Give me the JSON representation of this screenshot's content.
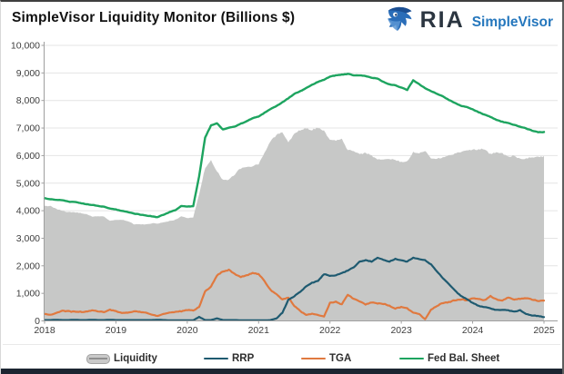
{
  "header": {
    "title": "SimpleVisor Liquidity Monitor (Billions $)",
    "brand": {
      "name": "RIA",
      "product": "SimpleVisor"
    }
  },
  "colors": {
    "liquidity_fill": "#c7c8c7",
    "rrp_line": "#1e5a70",
    "tga_line": "#e0793f",
    "fed_line": "#1da45f",
    "grid": "#e4e4e4",
    "axis": "#9f9f9f",
    "tick_text": "#3e3e3e",
    "brand_dark": "#2b3540",
    "brand_blue": "#2577bd",
    "bottom_bar": "#1c2531"
  },
  "chart_data": {
    "type": "area",
    "title": "SimpleVisor Liquidity Monitor (Billions $)",
    "xlabel": "",
    "ylabel": "",
    "ylim": [
      0,
      10000
    ],
    "y_tick_step": 1000,
    "y_tick_labels": [
      "0",
      "1,000",
      "2,000",
      "3,000",
      "4,000",
      "5,000",
      "6,000",
      "7,000",
      "8,000",
      "9,000",
      "10,000"
    ],
    "x_tick_labels": [
      "2018",
      "2019",
      "2020",
      "2021",
      "2022",
      "2023",
      "2024",
      "2025"
    ],
    "x_start": "2018-01",
    "x_end": "2025-01",
    "grid": "horizontal",
    "legend_position": "bottom",
    "series": [
      {
        "name": "Liquidity",
        "type": "area",
        "color": "#c7c8c7",
        "values": [
          4169,
          4164,
          4065,
          3992,
          3947,
          3946,
          3917,
          3877,
          3788,
          3795,
          3783,
          3636,
          3667,
          3670,
          3626,
          3512,
          3503,
          3496,
          3540,
          3540,
          3576,
          3626,
          3671,
          3796,
          3731,
          3759,
          4604,
          5556,
          5817,
          5429,
          5119,
          5131,
          5326,
          5537,
          5573,
          5614,
          5694,
          6097,
          6541,
          6738,
          6856,
          6461,
          6800,
          6930,
          6983,
          6930,
          7015,
          6897,
          6587,
          6561,
          6587,
          6195,
          6164,
          6065,
          6090,
          6006,
          5861,
          5835,
          5884,
          5851,
          5771,
          5783,
          6134,
          6093,
          6186,
          5891,
          5893,
          5946,
          5993,
          6066,
          6135,
          6214,
          6207,
          6226,
          6235,
          6052,
          6116,
          6078,
          5948,
          6003,
          5867,
          5907,
          5925,
          5952,
          5970
        ]
      },
      {
        "name": "RRP",
        "type": "line",
        "color": "#1e5a70",
        "values": [
          30,
          30,
          40,
          30,
          30,
          40,
          30,
          30,
          40,
          30,
          30,
          40,
          30,
          30,
          30,
          30,
          30,
          30,
          30,
          40,
          30,
          20,
          20,
          20,
          20,
          20,
          150,
          30,
          30,
          90,
          30,
          30,
          30,
          20,
          20,
          20,
          20,
          20,
          30,
          90,
          300,
          766,
          900,
          1050,
          1250,
          1380,
          1450,
          1700,
          1630,
          1650,
          1750,
          1820,
          1950,
          2150,
          2200,
          2150,
          2300,
          2220,
          2150,
          2250,
          2200,
          2150,
          2300,
          2250,
          2200,
          2050,
          1800,
          1550,
          1350,
          1100,
          900,
          800,
          650,
          550,
          500,
          450,
          400,
          400,
          380,
          330,
          380,
          250,
          200,
          180,
          130
        ]
      },
      {
        "name": "TGA",
        "type": "line",
        "color": "#e0793f",
        "values": [
          250,
          220,
          290,
          360,
          350,
          330,
          330,
          330,
          380,
          350,
          330,
          400,
          350,
          290,
          300,
          350,
          330,
          300,
          230,
          180,
          250,
          300,
          330,
          350,
          400,
          380,
          500,
          1070,
          1250,
          1650,
          1800,
          1850,
          1700,
          1600,
          1650,
          1729,
          1700,
          1440,
          1122,
          966,
          779,
          851,
          540,
          356,
          215,
          260,
          210,
          160,
          650,
          700,
          600,
          950,
          800,
          700,
          600,
          670,
          635,
          620,
          550,
          450,
          500,
          450,
          300,
          250,
          60,
          400,
          550,
          650,
          680,
          750,
          780,
          750,
          820,
          800,
          750,
          900,
          780,
          750,
          850,
          780,
          800,
          830,
          780,
          720,
          750
        ]
      },
      {
        "name": "Fed Bal. Sheet",
        "type": "line",
        "color": "#1da45f",
        "values": [
          4449,
          4414,
          4395,
          4382,
          4327,
          4316,
          4277,
          4237,
          4208,
          4175,
          4143,
          4076,
          4047,
          3990,
          3956,
          3892,
          3863,
          3826,
          3800,
          3760,
          3856,
          3946,
          4021,
          4166,
          4151,
          4159,
          5254,
          6656,
          7097,
          7169,
          6949,
          7011,
          7056,
          7157,
          7243,
          7363,
          7414,
          7557,
          7693,
          7794,
          7935,
          8078,
          8240,
          8336,
          8448,
          8570,
          8675,
          8757,
          8867,
          8911,
          8937,
          8965,
          8914,
          8915,
          8890,
          8826,
          8796,
          8675,
          8584,
          8551,
          8471,
          8383,
          8734,
          8593,
          8446,
          8341,
          8243,
          8146,
          8023,
          7916,
          7815,
          7764,
          7677,
          7576,
          7485,
          7402,
          7296,
          7228,
          7178,
          7113,
          7047,
          6987,
          6905,
          6852,
          6850
        ]
      }
    ]
  }
}
